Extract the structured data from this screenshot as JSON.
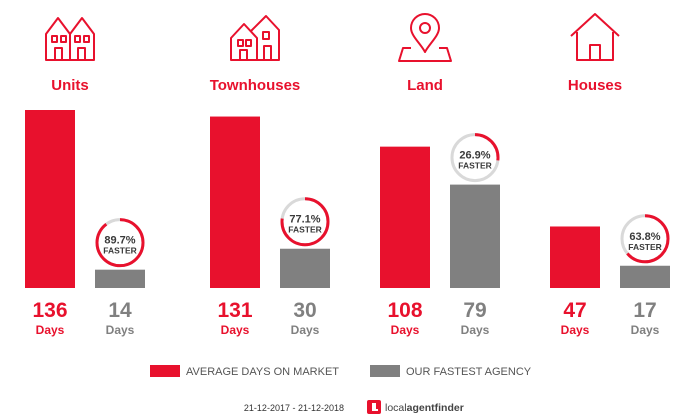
{
  "chart_data": {
    "type": "bar",
    "categories": [
      "Units",
      "Townhouses",
      "Land",
      "Houses"
    ],
    "category_icons": [
      "units-icon",
      "townhouses-icon",
      "land-pin-icon",
      "house-icon"
    ],
    "series": [
      {
        "name": "AVERAGE DAYS ON MARKET",
        "values": [
          136,
          131,
          108,
          47
        ],
        "color": "#e8112d"
      },
      {
        "name": "OUR FASTEST AGENCY",
        "values": [
          14,
          30,
          79,
          17
        ],
        "color": "#808080"
      }
    ],
    "faster_percent": [
      "89.7%",
      "77.1%",
      "26.9%",
      "63.8%"
    ],
    "faster_label": "FASTER",
    "value_unit": "Days",
    "ylim": [
      0,
      136
    ],
    "legend_position": "bottom"
  },
  "footer": {
    "date_range": "21-12-2017 - 21-12-2018",
    "brand_prefix": "local",
    "brand_suffix": "agentfinder"
  },
  "colors": {
    "accent": "#e8112d",
    "agency": "#808080",
    "ring_track": "#d9d9d9"
  }
}
